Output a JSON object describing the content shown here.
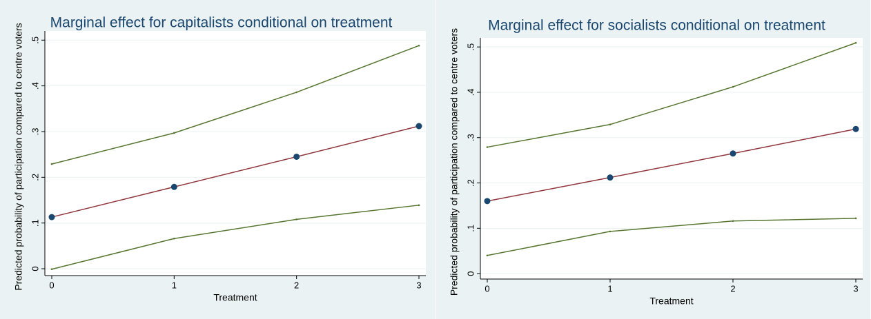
{
  "chart_data": [
    {
      "type": "line",
      "title": "Marginal effect for capitalists conditional on treatment",
      "x_label": "Treatment",
      "y_label": "Predicted probability of participation compared to centre voters",
      "x": [
        0,
        1,
        2,
        3
      ],
      "xlim": [
        0,
        3
      ],
      "xticks": [
        0,
        1,
        2,
        3
      ],
      "ylim": [
        -0.015,
        0.52
      ],
      "yticks": [
        0,
        {
          "value": 0.1,
          "label": ".1"
        },
        {
          "value": 0.2,
          "label": ".2"
        },
        {
          "value": 0.3,
          "label": ".3"
        },
        {
          "value": 0.4,
          "label": ".4"
        },
        {
          "value": 0.5,
          "label": ".5"
        }
      ],
      "grid": true,
      "series": [
        {
          "color": "#90353b",
          "marker_color": "#1a476f",
          "markers": true,
          "values": [
            0.113,
            0.179,
            0.245,
            0.312
          ]
        },
        {
          "color": "#55752f",
          "values": [
            0.229,
            0.297,
            0.386,
            0.488
          ]
        },
        {
          "color": "#55752f",
          "values": [
            -0.001,
            0.066,
            0.108,
            0.139
          ]
        }
      ]
    },
    {
      "type": "line",
      "title": "Marginal effect for socialists conditional on treatment",
      "x_label": "Treatment",
      "y_label": "Predicted probability of participation compared to centre voters",
      "x": [
        0,
        1,
        2,
        3
      ],
      "xlim": [
        0,
        3
      ],
      "xticks": [
        0,
        1,
        2,
        3
      ],
      "ylim": [
        -0.012,
        0.52
      ],
      "yticks": [
        0,
        {
          "value": 0.1,
          "label": ".1"
        },
        {
          "value": 0.2,
          "label": ".2"
        },
        {
          "value": 0.3,
          "label": ".3"
        },
        {
          "value": 0.4,
          "label": ".4"
        },
        {
          "value": 0.5,
          "label": ".5"
        }
      ],
      "grid": true,
      "series": [
        {
          "color": "#90353b",
          "marker_color": "#1a476f",
          "markers": true,
          "values": [
            0.16,
            0.212,
            0.265,
            0.319
          ]
        },
        {
          "color": "#55752f",
          "values": [
            0.279,
            0.329,
            0.412,
            0.509
          ]
        },
        {
          "color": "#55752f",
          "values": [
            0.04,
            0.093,
            0.116,
            0.122
          ]
        }
      ]
    }
  ]
}
